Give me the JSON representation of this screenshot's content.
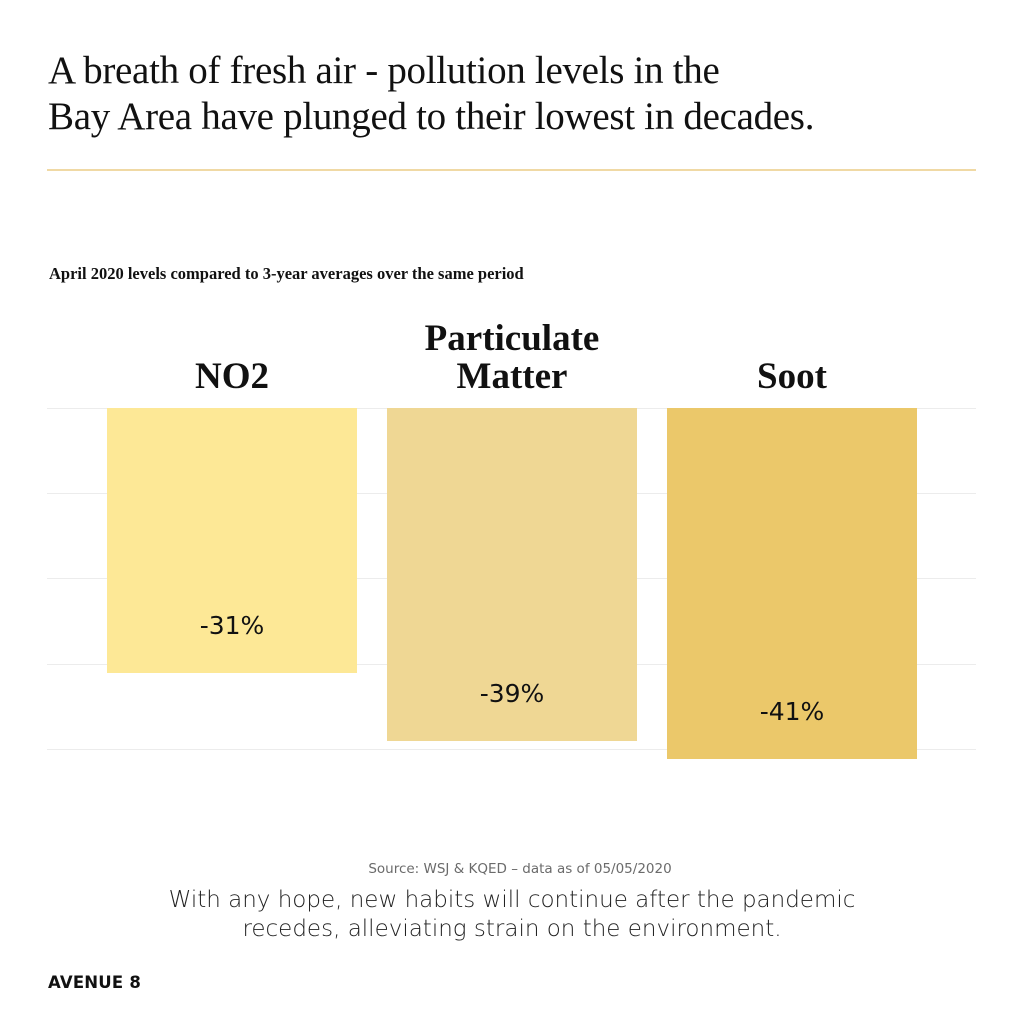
{
  "header": {
    "title_lines": [
      "A breath of fresh air - pollution levels in the",
      "Bay Area have plunged to their lowest in decades."
    ],
    "rule_color": "#f0d9a4"
  },
  "chart_data": {
    "type": "bar",
    "title": "A breath of fresh air - pollution levels in the Bay Area have plunged to their lowest in decades.",
    "subtitle": "April 2020 levels compared to 3-year averages over the same period",
    "categories": [
      "NO2",
      "Particulate Matter",
      "Soot"
    ],
    "values": [
      -31,
      -39,
      -41
    ],
    "value_labels": [
      "-31%",
      "-39%",
      "-41%"
    ],
    "colors": [
      "#fde896",
      "#efd794",
      "#ebc86a"
    ],
    "xlabel": "",
    "ylabel": "",
    "ylim": [
      -50,
      0
    ],
    "grid": true,
    "legend": "none",
    "orientation": "vertical, bars hang down from zero line"
  },
  "chart": {
    "subtitle": "April 2020 levels compared to 3-year averages over the same period",
    "bars": [
      {
        "label_lines": [
          "NO2"
        ],
        "value": -31,
        "value_label": "-31%",
        "color": "#fde896"
      },
      {
        "label_lines": [
          "Particulate",
          "Matter"
        ],
        "value": -39,
        "value_label": "-39%",
        "color": "#efd794"
      },
      {
        "label_lines": [
          "Soot"
        ],
        "value": -41,
        "value_label": "-41%",
        "color": "#ebc86a"
      }
    ]
  },
  "footer": {
    "source": "Source: WSJ & KQED – data as of 05/05/2020",
    "caption_lines": [
      "With any hope, new habits will continue after the pandemic",
      "recedes, alleviating strain on the environment."
    ],
    "brand": "AVENUE 8"
  }
}
